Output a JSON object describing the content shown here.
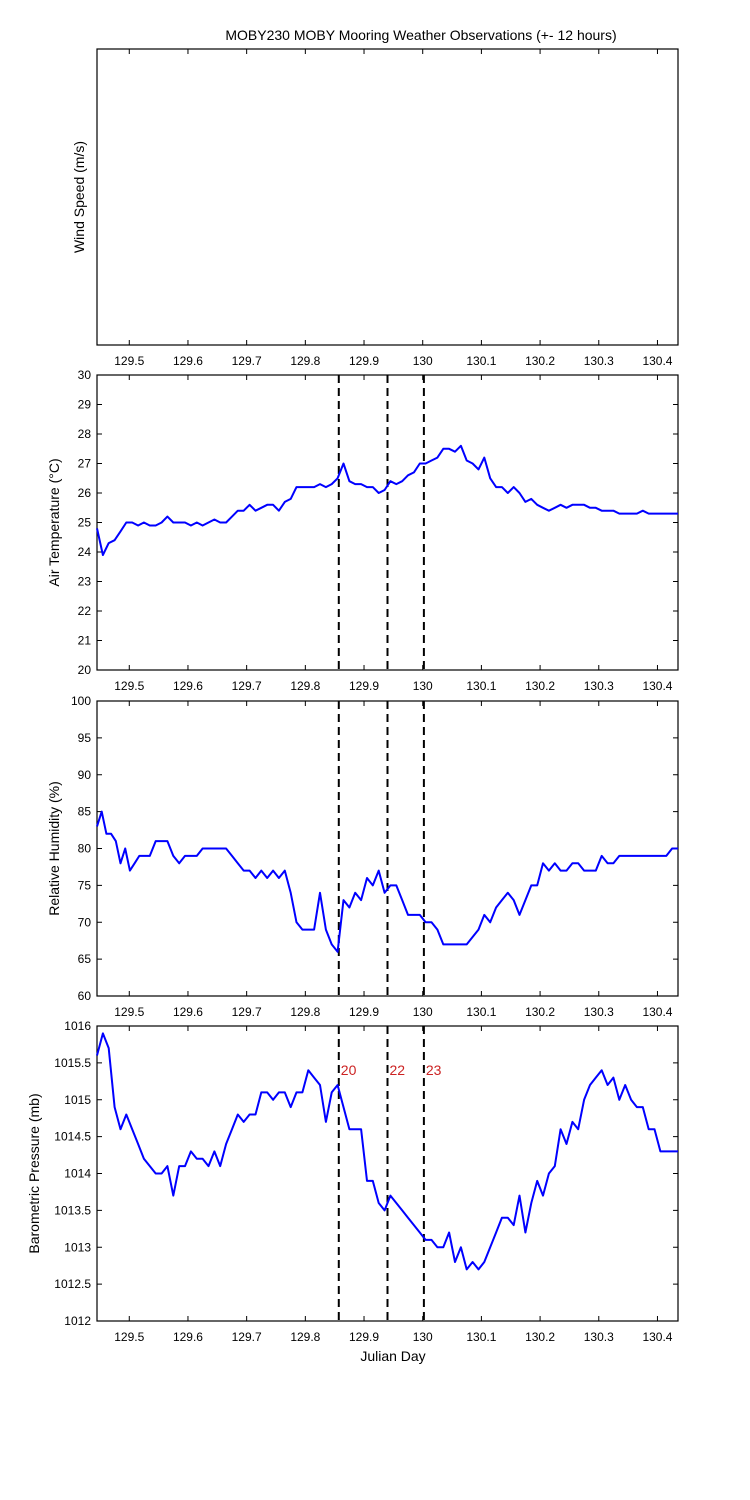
{
  "title": "MOBY230 MOBY Mooring Weather Observations (+- 12 hours)",
  "xlabel": "Julian Day",
  "colors": {
    "line": "#0000ff",
    "marker": "#000000",
    "marker_label": "#cc2222",
    "axes": "#000000"
  },
  "markers": [
    {
      "x": 129.857,
      "label": "20"
    },
    {
      "x": 129.94,
      "label": "22"
    },
    {
      "x": 130.002,
      "label": "23"
    }
  ],
  "chart_data": [
    {
      "type": "line",
      "ylabel": "Wind Speed (m/s)",
      "xlim": [
        129.445,
        130.435
      ],
      "xticks": [
        "129.5",
        "129.6",
        "129.7",
        "129.8",
        "129.9",
        "130",
        "130.1",
        "130.2",
        "130.3",
        "130.4"
      ],
      "yticks": [],
      "ylim": [
        0,
        1
      ],
      "show_markers": false,
      "series": []
    },
    {
      "type": "line",
      "ylabel": "Air Temperature (°C)",
      "xlim": [
        129.445,
        130.435
      ],
      "ylim": [
        20,
        30
      ],
      "xticks": [
        "129.5",
        "129.6",
        "129.7",
        "129.8",
        "129.9",
        "130",
        "130.1",
        "130.2",
        "130.3",
        "130.4"
      ],
      "yticks": [
        "20",
        "21",
        "22",
        "23",
        "24",
        "25",
        "26",
        "27",
        "28",
        "29",
        "30"
      ],
      "show_markers": true,
      "series": [
        {
          "x": [
            129.445,
            129.455,
            129.465,
            129.475,
            129.485,
            129.495,
            129.505,
            129.515,
            129.525,
            129.535,
            129.545,
            129.555,
            129.565,
            129.575,
            129.585,
            129.595,
            129.605,
            129.615,
            129.625,
            129.635,
            129.645,
            129.655,
            129.665,
            129.675,
            129.685,
            129.695,
            129.705,
            129.715,
            129.725,
            129.735,
            129.745,
            129.755,
            129.765,
            129.775,
            129.785,
            129.795,
            129.805,
            129.815,
            129.825,
            129.835,
            129.845,
            129.855,
            129.865,
            129.875,
            129.885,
            129.895,
            129.905,
            129.915,
            129.925,
            129.935,
            129.945,
            129.955,
            129.965,
            129.975,
            129.985,
            129.995,
            130.005,
            130.015,
            130.025,
            130.035,
            130.045,
            130.055,
            130.065,
            130.075,
            130.085,
            130.095,
            130.105,
            130.115,
            130.125,
            130.135,
            130.145,
            130.155,
            130.165,
            130.175,
            130.185,
            130.195,
            130.205,
            130.215,
            130.225,
            130.235,
            130.245,
            130.255,
            130.265,
            130.275,
            130.285,
            130.295,
            130.305,
            130.315,
            130.325,
            130.335,
            130.345,
            130.355,
            130.365,
            130.375,
            130.385,
            130.395,
            130.405,
            130.415,
            130.425,
            130.435
          ],
          "y": [
            24.8,
            23.9,
            24.3,
            24.4,
            24.7,
            25.0,
            25.0,
            24.9,
            25.0,
            24.9,
            24.9,
            25.0,
            25.2,
            25.0,
            25.0,
            25.0,
            24.9,
            25.0,
            24.9,
            25.0,
            25.1,
            25.0,
            25.0,
            25.2,
            25.4,
            25.4,
            25.6,
            25.4,
            25.5,
            25.6,
            25.6,
            25.4,
            25.7,
            25.8,
            26.2,
            26.2,
            26.2,
            26.2,
            26.3,
            26.2,
            26.3,
            26.5,
            27.0,
            26.4,
            26.3,
            26.3,
            26.2,
            26.2,
            26.0,
            26.1,
            26.4,
            26.3,
            26.4,
            26.6,
            26.7,
            27.0,
            27.0,
            27.1,
            27.2,
            27.5,
            27.5,
            27.4,
            27.6,
            27.1,
            27.0,
            26.8,
            27.2,
            26.5,
            26.2,
            26.2,
            26.0,
            26.2,
            26.0,
            25.7,
            25.8,
            25.6,
            25.5,
            25.4,
            25.5,
            25.6,
            25.5,
            25.6,
            25.6,
            25.6,
            25.5,
            25.5,
            25.4,
            25.4,
            25.4,
            25.3,
            25.3,
            25.3,
            25.3,
            25.4,
            25.3,
            25.3,
            25.3,
            25.3,
            25.3,
            25.3
          ]
        }
      ]
    },
    {
      "type": "line",
      "ylabel": "Relative Humidity (%)",
      "xlim": [
        129.445,
        130.435
      ],
      "ylim": [
        60,
        100
      ],
      "xticks": [
        "129.5",
        "129.6",
        "129.7",
        "129.8",
        "129.9",
        "130",
        "130.1",
        "130.2",
        "130.3",
        "130.4"
      ],
      "yticks": [
        "60",
        "65",
        "70",
        "75",
        "80",
        "85",
        "90",
        "95",
        "100"
      ],
      "show_markers": true,
      "series": [
        {
          "x": [
            129.445,
            129.453,
            129.461,
            129.469,
            129.477,
            129.485,
            129.493,
            129.501,
            129.509,
            129.517,
            129.525,
            129.535,
            129.545,
            129.555,
            129.565,
            129.575,
            129.585,
            129.595,
            129.605,
            129.615,
            129.625,
            129.635,
            129.645,
            129.655,
            129.665,
            129.675,
            129.685,
            129.695,
            129.705,
            129.715,
            129.725,
            129.735,
            129.745,
            129.755,
            129.765,
            129.775,
            129.785,
            129.795,
            129.805,
            129.815,
            129.825,
            129.835,
            129.845,
            129.855,
            129.865,
            129.875,
            129.885,
            129.895,
            129.905,
            129.915,
            129.925,
            129.935,
            129.945,
            129.955,
            129.965,
            129.975,
            129.985,
            129.995,
            130.005,
            130.015,
            130.025,
            130.035,
            130.045,
            130.055,
            130.065,
            130.075,
            130.085,
            130.095,
            130.105,
            130.115,
            130.125,
            130.135,
            130.145,
            130.155,
            130.165,
            130.175,
            130.185,
            130.195,
            130.205,
            130.215,
            130.225,
            130.235,
            130.245,
            130.255,
            130.265,
            130.275,
            130.285,
            130.295,
            130.305,
            130.315,
            130.325,
            130.335,
            130.345,
            130.355,
            130.365,
            130.375,
            130.385,
            130.395,
            130.405,
            130.415,
            130.425,
            130.435
          ],
          "y": [
            83,
            85,
            82,
            82,
            81,
            78,
            80,
            77,
            78,
            79,
            79,
            79,
            81,
            81,
            81,
            79,
            78,
            79,
            79,
            79,
            80,
            80,
            80,
            80,
            80,
            79,
            78,
            77,
            77,
            76,
            77,
            76,
            77,
            76,
            77,
            74,
            70,
            69,
            69,
            69,
            74,
            69,
            67,
            66,
            73,
            72,
            74,
            73,
            76,
            75,
            77,
            74,
            75,
            75,
            73,
            71,
            71,
            71,
            70,
            70,
            69,
            67,
            67,
            67,
            67,
            67,
            68,
            69,
            71,
            70,
            72,
            73,
            74,
            73,
            71,
            73,
            75,
            75,
            78,
            77,
            78,
            77,
            77,
            78,
            78,
            77,
            77,
            77,
            79,
            78,
            78,
            79,
            79,
            79,
            79,
            79,
            79,
            79,
            79,
            79,
            80,
            80
          ]
        }
      ]
    },
    {
      "type": "line",
      "ylabel": "Barometric Pressure (mb)",
      "xlim": [
        129.445,
        130.435
      ],
      "ylim": [
        1012,
        1016
      ],
      "xticks": [
        "129.5",
        "129.6",
        "129.7",
        "129.8",
        "129.9",
        "130",
        "130.1",
        "130.2",
        "130.3",
        "130.4"
      ],
      "yticks": [
        "1012",
        "1012.5",
        "1013",
        "1013.5",
        "1014",
        "1014.5",
        "1015",
        "1015.5",
        "1016"
      ],
      "show_markers": true,
      "show_marker_labels": true,
      "series": [
        {
          "x": [
            129.445,
            129.455,
            129.465,
            129.475,
            129.485,
            129.495,
            129.505,
            129.515,
            129.525,
            129.535,
            129.545,
            129.555,
            129.565,
            129.575,
            129.585,
            129.595,
            129.605,
            129.615,
            129.625,
            129.635,
            129.645,
            129.655,
            129.665,
            129.675,
            129.685,
            129.695,
            129.705,
            129.715,
            129.725,
            129.735,
            129.745,
            129.755,
            129.765,
            129.775,
            129.785,
            129.795,
            129.805,
            129.815,
            129.825,
            129.835,
            129.845,
            129.855,
            129.865,
            129.875,
            129.885,
            129.895,
            129.905,
            129.915,
            129.925,
            129.935,
            129.945,
            129.955,
            129.965,
            129.975,
            129.985,
            129.995,
            130.005,
            130.015,
            130.025,
            130.035,
            130.045,
            130.055,
            130.065,
            130.075,
            130.085,
            130.095,
            130.105,
            130.115,
            130.125,
            130.135,
            130.145,
            130.155,
            130.165,
            130.175,
            130.185,
            130.195,
            130.205,
            130.215,
            130.225,
            130.235,
            130.245,
            130.255,
            130.265,
            130.275,
            130.285,
            130.295,
            130.305,
            130.315,
            130.325,
            130.335,
            130.345,
            130.355,
            130.365,
            130.375,
            130.385,
            130.395,
            130.405,
            130.415,
            130.425,
            130.435
          ],
          "y": [
            1015.6,
            1015.9,
            1015.7,
            1014.9,
            1014.6,
            1014.8,
            1014.6,
            1014.4,
            1014.2,
            1014.1,
            1014.0,
            1014.0,
            1014.1,
            1013.7,
            1014.1,
            1014.1,
            1014.3,
            1014.2,
            1014.2,
            1014.1,
            1014.3,
            1014.1,
            1014.4,
            1014.6,
            1014.8,
            1014.7,
            1014.8,
            1014.8,
            1015.1,
            1015.1,
            1015.0,
            1015.1,
            1015.1,
            1014.9,
            1015.1,
            1015.1,
            1015.4,
            1015.3,
            1015.2,
            1014.7,
            1015.1,
            1015.2,
            1014.9,
            1014.6,
            1014.6,
            1014.6,
            1013.9,
            1013.9,
            1013.6,
            1013.5,
            1013.7,
            1013.6,
            1013.5,
            1013.4,
            1013.3,
            1013.2,
            1013.1,
            1013.1,
            1013.0,
            1013.0,
            1013.2,
            1012.8,
            1013.0,
            1012.7,
            1012.8,
            1012.7,
            1012.8,
            1013.0,
            1013.2,
            1013.4,
            1013.4,
            1013.3,
            1013.7,
            1013.2,
            1013.6,
            1013.9,
            1013.7,
            1014.0,
            1014.1,
            1014.6,
            1014.4,
            1014.7,
            1014.6,
            1015.0,
            1015.2,
            1015.3,
            1015.4,
            1015.2,
            1015.3,
            1015.0,
            1015.2,
            1015.0,
            1014.9,
            1014.9,
            1014.6,
            1014.6,
            1014.3,
            1014.3,
            1014.3,
            1014.3
          ]
        }
      ]
    }
  ]
}
